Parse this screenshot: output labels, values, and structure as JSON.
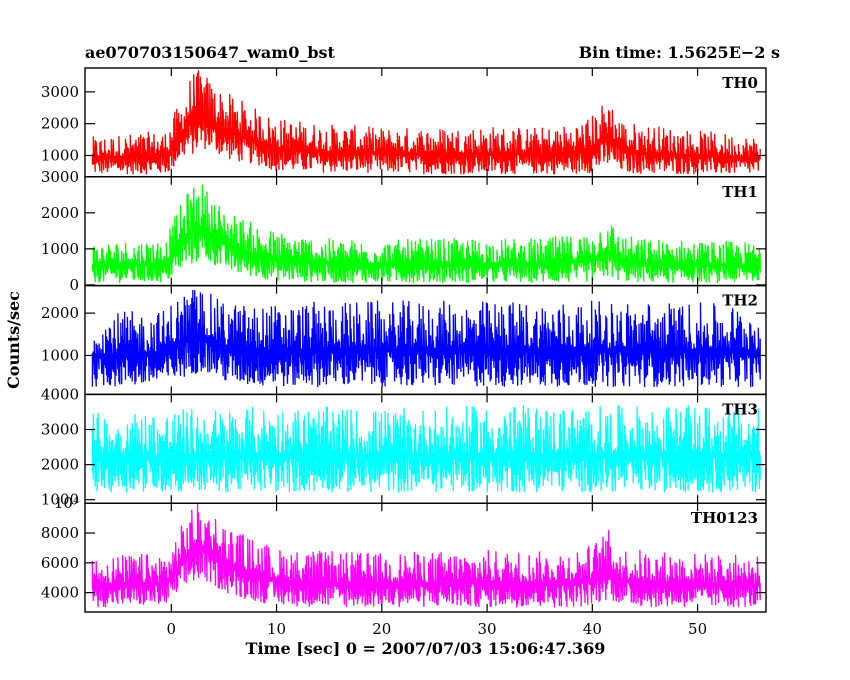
{
  "header": {
    "title": "ae070703150647_wam0_bst",
    "bin_time": "Bin time: 1.5625E−2 s"
  },
  "chart_data": {
    "type": "line",
    "title": "ae070703150647_wam0_bst",
    "subtitle": "Bin time: 1.5625E−2 s",
    "xlabel": "Time [sec] 0 = 2007/07/03 15:06:47.369",
    "ylabel": "Counts/sec",
    "xlim": [
      -8.2,
      56.5
    ],
    "xticks": [
      0,
      10,
      20,
      30,
      40,
      50
    ],
    "x_range_of_data": [
      -7.5,
      56
    ],
    "grid": false,
    "panels": [
      {
        "name": "TH0",
        "color": "#ff0000",
        "ylim": [
          330,
          3750
        ],
        "yticks": [
          1000,
          2000,
          3000
        ],
        "ytick_labels": [
          "1000",
          "2000",
          "3000"
        ],
        "envelope": {
          "x": [
            -7.5,
            -0.5,
            0,
            1,
            2,
            3,
            4,
            5,
            6,
            8,
            10,
            15,
            20,
            25,
            30,
            35,
            38,
            40,
            41,
            41.5,
            42,
            43,
            45,
            50,
            56
          ],
          "low": [
            400,
            400,
            500,
            900,
            1000,
            1200,
            1100,
            900,
            800,
            700,
            500,
            450,
            450,
            400,
            400,
            400,
            400,
            450,
            550,
            600,
            550,
            450,
            400,
            400,
            400
          ],
          "high": [
            1600,
            1800,
            2200,
            2800,
            3700,
            3700,
            3300,
            3000,
            2900,
            2500,
            2200,
            2000,
            1900,
            1900,
            1950,
            1900,
            2000,
            2300,
            2700,
            3000,
            2600,
            2100,
            2000,
            1800,
            1600
          ]
        }
      },
      {
        "name": "TH1",
        "color": "#00ff00",
        "ylim": [
          -20,
          3000
        ],
        "yticks": [
          0,
          1000,
          2000,
          3000
        ],
        "ytick_labels": [
          "0",
          "1000",
          "2000",
          "3000"
        ],
        "envelope": {
          "x": [
            -7.5,
            -0.5,
            0,
            1,
            2,
            3,
            4,
            5,
            6,
            8,
            10,
            15,
            20,
            25,
            30,
            35,
            38,
            40,
            41,
            41.5,
            42,
            43,
            45,
            50,
            56
          ],
          "low": [
            50,
            50,
            150,
            400,
            550,
            650,
            550,
            400,
            300,
            200,
            100,
            50,
            50,
            50,
            50,
            50,
            50,
            80,
            150,
            200,
            150,
            80,
            50,
            50,
            50
          ],
          "high": [
            1200,
            1300,
            1700,
            2300,
            2850,
            2850,
            2400,
            2200,
            2000,
            1700,
            1500,
            1300,
            1250,
            1300,
            1300,
            1300,
            1400,
            1500,
            1800,
            1950,
            1700,
            1400,
            1300,
            1250,
            1200
          ]
        }
      },
      {
        "name": "TH2",
        "color": "#0000ff",
        "ylim": [
          80,
          2650
        ],
        "yticks": [
          1000,
          2000
        ],
        "ytick_labels": [
          "1000",
          "2000"
        ],
        "envelope": {
          "x": [
            -7.5,
            -0.5,
            0,
            1,
            2,
            3,
            4,
            5,
            8,
            15,
            25,
            35,
            40,
            45,
            56
          ],
          "low": [
            250,
            250,
            300,
            450,
            550,
            600,
            500,
            350,
            250,
            250,
            250,
            250,
            250,
            250,
            250
          ],
          "high": [
            2000,
            2100,
            2300,
            2500,
            2650,
            2650,
            2400,
            2300,
            2200,
            2300,
            2300,
            2300,
            2300,
            2300,
            2200
          ]
        }
      },
      {
        "name": "TH3",
        "color": "#00ffff",
        "ylim": [
          900,
          4000
        ],
        "yticks": [
          1000,
          2000,
          3000,
          4000
        ],
        "ytick_labels": [
          "1000",
          "2000",
          "3000",
          "4000"
        ],
        "envelope": {
          "x": [
            -7.5,
            0,
            10,
            20,
            30,
            40,
            50,
            56
          ],
          "low": [
            1200,
            1200,
            1200,
            1200,
            1200,
            1200,
            1200,
            1200
          ],
          "high": [
            3500,
            3600,
            3700,
            3600,
            3700,
            3700,
            3700,
            3600
          ]
        }
      },
      {
        "name": "TH0123",
        "color": "#ff00ff",
        "ylim": [
          2700,
          10000
        ],
        "yticks": [
          4000,
          6000,
          8000,
          10000
        ],
        "ytick_labels": [
          "4000",
          "6000",
          "8000",
          "10⁴"
        ],
        "envelope": {
          "x": [
            -7.5,
            -0.5,
            0,
            1,
            2,
            3,
            4,
            5,
            6,
            8,
            10,
            15,
            20,
            25,
            30,
            35,
            38,
            40,
            41,
            41.5,
            42,
            43,
            45,
            50,
            56
          ],
          "low": [
            3000,
            3100,
            3400,
            4000,
            4600,
            4800,
            4500,
            4000,
            3700,
            3400,
            3100,
            3000,
            3000,
            3000,
            3000,
            3000,
            3000,
            3100,
            3400,
            3600,
            3400,
            3100,
            3000,
            3000,
            3000
          ],
          "high": [
            6500,
            6700,
            7300,
            8600,
            10000,
            10000,
            9500,
            8800,
            8300,
            7600,
            7000,
            6800,
            6700,
            6800,
            6900,
            6800,
            7000,
            7300,
            8000,
            8300,
            7700,
            7100,
            6900,
            6700,
            6500
          ]
        }
      }
    ]
  }
}
